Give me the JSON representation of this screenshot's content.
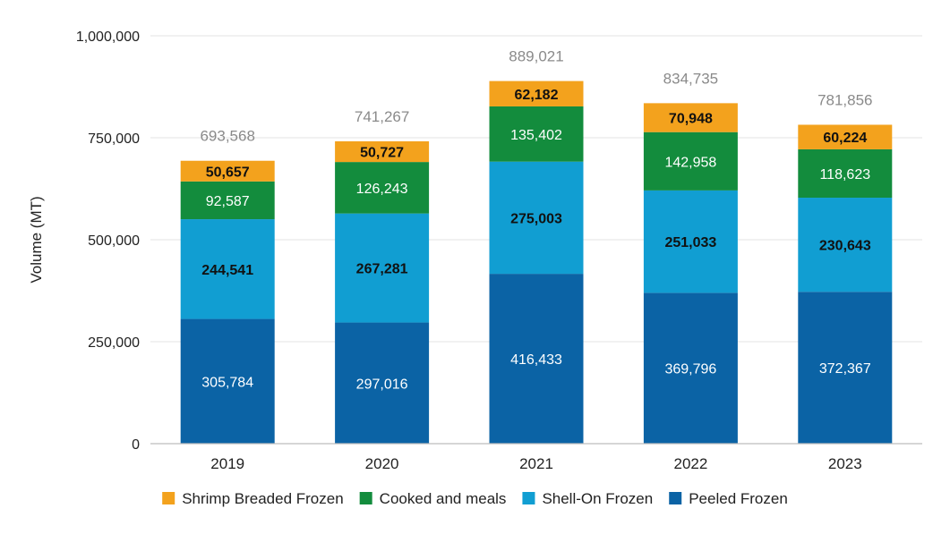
{
  "chart_data": {
    "type": "bar",
    "stacked": true,
    "title": "",
    "xlabel": "",
    "ylabel": "Volume (MT)",
    "ylim": [
      0,
      1000000
    ],
    "yticks": [
      0,
      250000,
      500000,
      750000,
      1000000
    ],
    "ytick_labels": [
      "0",
      "250,000",
      "500,000",
      "750,000",
      "1,000,000"
    ],
    "grid": true,
    "legend_position": "bottom",
    "categories": [
      "2019",
      "2020",
      "2021",
      "2022",
      "2023"
    ],
    "series": [
      {
        "name": "Peeled Frozen",
        "color": "#0b63a5",
        "label_color": "#ffffff",
        "label_bold": false,
        "values": [
          305784,
          297016,
          416433,
          369796,
          372367
        ],
        "labels": [
          "305,784",
          "297,016",
          "416,433",
          "369,796",
          "372,367"
        ]
      },
      {
        "name": "Shell-On Frozen",
        "color": "#119ed2",
        "label_color": "#111111",
        "label_bold": true,
        "values": [
          244541,
          267281,
          275003,
          251033,
          230643
        ],
        "labels": [
          "244,541",
          "267,281",
          "275,003",
          "251,033",
          "230,643"
        ]
      },
      {
        "name": "Cooked and meals",
        "color": "#138c3d",
        "label_color": "#ffffff",
        "label_bold": false,
        "values": [
          92587,
          126243,
          135402,
          142958,
          118623
        ],
        "labels": [
          "92,587",
          "126,243",
          "135,402",
          "142,958",
          "118,623"
        ]
      },
      {
        "name": "Shrimp Breaded Frozen",
        "color": "#f3a21d",
        "label_color": "#111111",
        "label_bold": true,
        "values": [
          50657,
          50727,
          62182,
          70948,
          60224
        ],
        "labels": [
          "50,657",
          "50,727",
          "62,182",
          "70,948",
          "60,224"
        ]
      }
    ],
    "totals": [
      693568,
      741267,
      889021,
      834735,
      781856
    ],
    "total_labels": [
      "693,568",
      "741,267",
      "889,021",
      "834,735",
      "781,856"
    ],
    "legend_order": [
      "Shrimp Breaded Frozen",
      "Cooked and meals",
      "Shell-On Frozen",
      "Peeled Frozen"
    ]
  }
}
